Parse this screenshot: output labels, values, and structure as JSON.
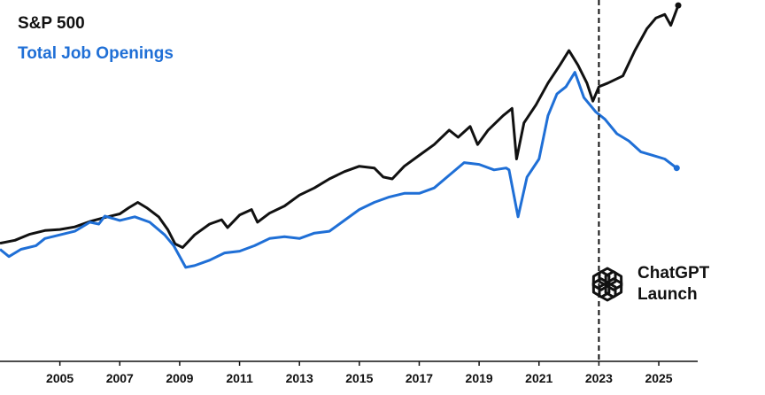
{
  "chart_data": {
    "type": "line",
    "title": "",
    "xlabel": "",
    "ylabel": "",
    "x_ticks": [
      "2005",
      "2007",
      "2009",
      "2011",
      "2013",
      "2015",
      "2017",
      "2019",
      "2021",
      "2023",
      "2025"
    ],
    "xlim": [
      2003,
      2026.3
    ],
    "ylim": [
      0,
      1
    ],
    "y_axis_visible": false,
    "grid": false,
    "legend_placement": "top-left",
    "series": [
      {
        "name": "S&P 500",
        "color": "#111111",
        "points": [
          [
            2003.0,
            0.327
          ],
          [
            2003.5,
            0.335
          ],
          [
            2004.0,
            0.352
          ],
          [
            2004.5,
            0.362
          ],
          [
            2005.0,
            0.365
          ],
          [
            2005.5,
            0.372
          ],
          [
            2006.0,
            0.387
          ],
          [
            2006.5,
            0.398
          ],
          [
            2007.0,
            0.408
          ],
          [
            2007.3,
            0.425
          ],
          [
            2007.6,
            0.44
          ],
          [
            2007.9,
            0.425
          ],
          [
            2008.3,
            0.4
          ],
          [
            2008.6,
            0.365
          ],
          [
            2008.85,
            0.325
          ],
          [
            2009.1,
            0.315
          ],
          [
            2009.5,
            0.35
          ],
          [
            2010.0,
            0.38
          ],
          [
            2010.4,
            0.392
          ],
          [
            2010.6,
            0.37
          ],
          [
            2011.0,
            0.405
          ],
          [
            2011.4,
            0.42
          ],
          [
            2011.6,
            0.385
          ],
          [
            2012.0,
            0.41
          ],
          [
            2012.5,
            0.43
          ],
          [
            2013.0,
            0.46
          ],
          [
            2013.5,
            0.48
          ],
          [
            2014.0,
            0.505
          ],
          [
            2014.5,
            0.525
          ],
          [
            2015.0,
            0.54
          ],
          [
            2015.5,
            0.535
          ],
          [
            2015.8,
            0.51
          ],
          [
            2016.1,
            0.505
          ],
          [
            2016.5,
            0.54
          ],
          [
            2017.0,
            0.57
          ],
          [
            2017.5,
            0.6
          ],
          [
            2018.0,
            0.64
          ],
          [
            2018.3,
            0.62
          ],
          [
            2018.7,
            0.65
          ],
          [
            2018.95,
            0.6
          ],
          [
            2019.3,
            0.64
          ],
          [
            2019.8,
            0.68
          ],
          [
            2020.1,
            0.7
          ],
          [
            2020.25,
            0.56
          ],
          [
            2020.5,
            0.66
          ],
          [
            2020.9,
            0.71
          ],
          [
            2021.3,
            0.77
          ],
          [
            2021.7,
            0.82
          ],
          [
            2022.0,
            0.86
          ],
          [
            2022.3,
            0.82
          ],
          [
            2022.6,
            0.77
          ],
          [
            2022.8,
            0.72
          ],
          [
            2023.0,
            0.76
          ],
          [
            2023.3,
            0.77
          ],
          [
            2023.8,
            0.79
          ],
          [
            2024.2,
            0.86
          ],
          [
            2024.6,
            0.92
          ],
          [
            2024.9,
            0.95
          ],
          [
            2025.2,
            0.96
          ],
          [
            2025.4,
            0.93
          ],
          [
            2025.65,
            0.985
          ]
        ]
      },
      {
        "name": "Total Job Openings",
        "color": "#1f6fd6",
        "points": [
          [
            2003.0,
            0.31
          ],
          [
            2003.3,
            0.29
          ],
          [
            2003.7,
            0.31
          ],
          [
            2004.2,
            0.32
          ],
          [
            2004.5,
            0.34
          ],
          [
            2005.0,
            0.35
          ],
          [
            2005.5,
            0.36
          ],
          [
            2006.0,
            0.385
          ],
          [
            2006.3,
            0.38
          ],
          [
            2006.5,
            0.402
          ],
          [
            2007.0,
            0.39
          ],
          [
            2007.5,
            0.4
          ],
          [
            2008.0,
            0.385
          ],
          [
            2008.5,
            0.35
          ],
          [
            2008.8,
            0.32
          ],
          [
            2009.2,
            0.26
          ],
          [
            2009.5,
            0.265
          ],
          [
            2010.0,
            0.28
          ],
          [
            2010.5,
            0.3
          ],
          [
            2011.0,
            0.305
          ],
          [
            2011.5,
            0.32
          ],
          [
            2012.0,
            0.34
          ],
          [
            2012.5,
            0.345
          ],
          [
            2013.0,
            0.34
          ],
          [
            2013.5,
            0.355
          ],
          [
            2014.0,
            0.36
          ],
          [
            2014.5,
            0.39
          ],
          [
            2015.0,
            0.42
          ],
          [
            2015.5,
            0.44
          ],
          [
            2016.0,
            0.455
          ],
          [
            2016.5,
            0.465
          ],
          [
            2017.0,
            0.465
          ],
          [
            2017.5,
            0.48
          ],
          [
            2018.0,
            0.515
          ],
          [
            2018.5,
            0.55
          ],
          [
            2019.0,
            0.545
          ],
          [
            2019.5,
            0.53
          ],
          [
            2019.9,
            0.535
          ],
          [
            2020.0,
            0.53
          ],
          [
            2020.3,
            0.4
          ],
          [
            2020.6,
            0.51
          ],
          [
            2021.0,
            0.56
          ],
          [
            2021.3,
            0.68
          ],
          [
            2021.6,
            0.74
          ],
          [
            2021.9,
            0.76
          ],
          [
            2022.2,
            0.8
          ],
          [
            2022.5,
            0.73
          ],
          [
            2022.9,
            0.69
          ],
          [
            2023.2,
            0.67
          ],
          [
            2023.6,
            0.63
          ],
          [
            2024.0,
            0.61
          ],
          [
            2024.4,
            0.58
          ],
          [
            2024.8,
            0.57
          ],
          [
            2025.2,
            0.56
          ],
          [
            2025.6,
            0.535
          ]
        ]
      }
    ],
    "annotations": [
      {
        "x": 2023.0,
        "label": "ChatGPT Launch",
        "style": "dashed-vertical-line"
      }
    ]
  },
  "legend": {
    "sp500": "S&P 500",
    "jobs": "Total Job Openings"
  },
  "annotation": {
    "line1": "ChatGPT",
    "line2": "Launch",
    "icon": "openai-logo-icon"
  }
}
